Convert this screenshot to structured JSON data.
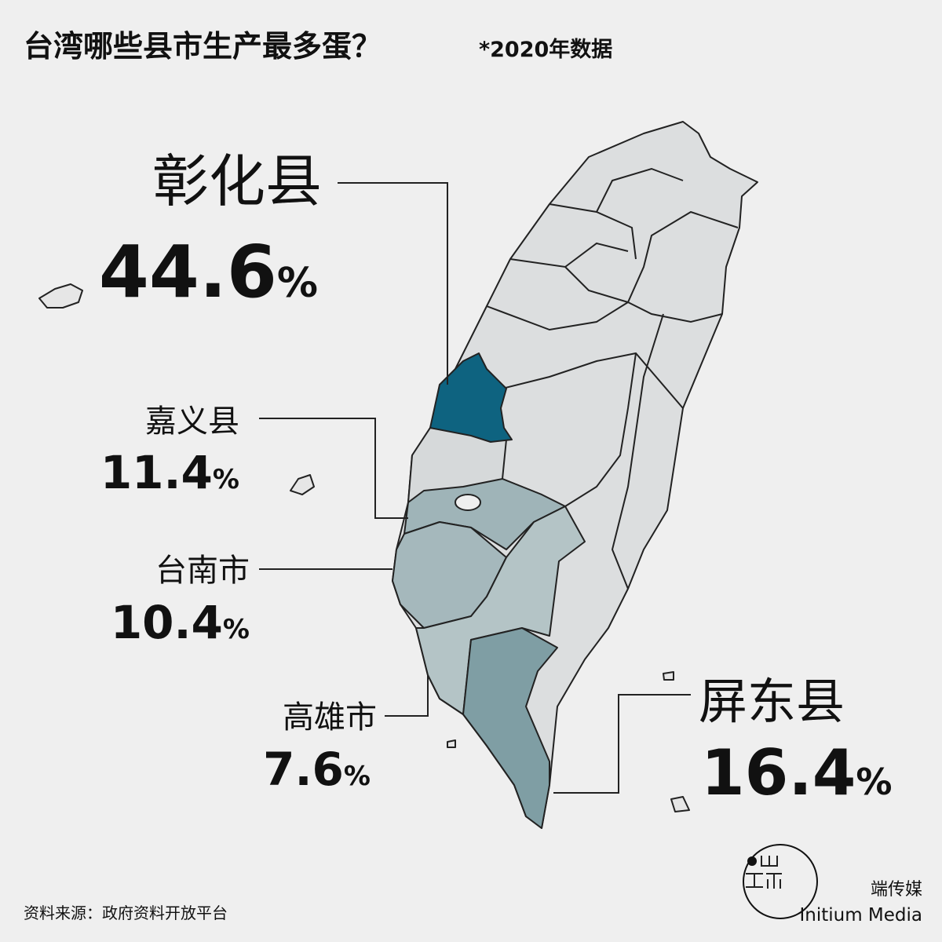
{
  "title": "台湾哪些县市生产最多蛋？",
  "subtitle": "*2020年数据",
  "regions": [
    {
      "name": "彰化县",
      "value": 44.6,
      "unit": "%",
      "color": "#0e6380"
    },
    {
      "name": "嘉义县",
      "value": 11.4,
      "unit": "%",
      "color": "#9fb4b8"
    },
    {
      "name": "台南市",
      "value": 10.4,
      "unit": "%",
      "color": "#a5b8bc"
    },
    {
      "name": "高雄市",
      "value": 7.6,
      "unit": "%",
      "color": "#b4c4c6"
    },
    {
      "name": "屏东县",
      "value": 16.4,
      "unit": "%",
      "color": "#7f9ea4"
    }
  ],
  "source": "资料来源：政府资料开放平台",
  "brand": {
    "name": "端传媒",
    "english": "Initium Media"
  }
}
